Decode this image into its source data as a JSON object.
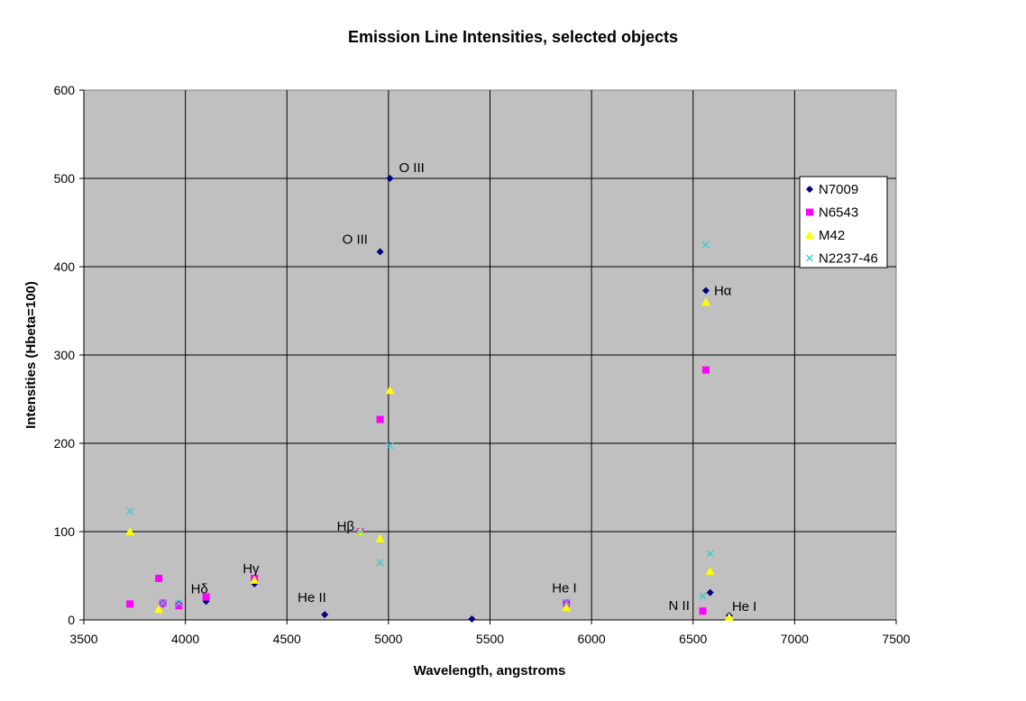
{
  "chart_data": {
    "type": "scatter",
    "title": "Emission Line Intensities, selected objects",
    "xlabel": "Wavelength, angstroms",
    "ylabel": "Intensities (Hbeta=100)",
    "xlim": [
      3500,
      7500
    ],
    "ylim": [
      0,
      600
    ],
    "xticks": [
      3500,
      4000,
      4500,
      5000,
      5500,
      6000,
      6500,
      7000,
      7500
    ],
    "yticks": [
      0,
      100,
      200,
      300,
      400,
      500,
      600
    ],
    "grid": true,
    "plot_background": "#c0c0c0",
    "legend_position": "right",
    "series": [
      {
        "name": "N7009",
        "marker": "diamond",
        "color": "#000080",
        "points": [
          [
            3889,
            18
          ],
          [
            3968,
            18
          ],
          [
            4102,
            21
          ],
          [
            4340,
            41
          ],
          [
            4686,
            6
          ],
          [
            4861,
            100
          ],
          [
            4959,
            417
          ],
          [
            5007,
            500
          ],
          [
            5411,
            1
          ],
          [
            6563,
            373
          ],
          [
            6584,
            31
          ],
          [
            6678,
            5
          ]
        ]
      },
      {
        "name": "N6543",
        "marker": "square",
        "color": "#ff00ff",
        "points": [
          [
            3727,
            18
          ],
          [
            3869,
            47
          ],
          [
            3889,
            19
          ],
          [
            3968,
            16
          ],
          [
            4102,
            26
          ],
          [
            4340,
            47
          ],
          [
            4861,
            100
          ],
          [
            4959,
            227
          ],
          [
            5876,
            19
          ],
          [
            6548,
            10
          ],
          [
            6563,
            283
          ]
        ]
      },
      {
        "name": "M42",
        "marker": "triangle",
        "color": "#ffff00",
        "points": [
          [
            3727,
            100
          ],
          [
            3869,
            12
          ],
          [
            4340,
            45
          ],
          [
            4861,
            100
          ],
          [
            4959,
            92
          ],
          [
            5007,
            260
          ],
          [
            5876,
            14
          ],
          [
            6563,
            360
          ],
          [
            6584,
            55
          ],
          [
            6678,
            3
          ]
        ]
      },
      {
        "name": "N2237-46",
        "marker": "x",
        "color": "#33cccc",
        "points": [
          [
            3727,
            123
          ],
          [
            3889,
            19
          ],
          [
            3968,
            19
          ],
          [
            4861,
            100
          ],
          [
            4959,
            65
          ],
          [
            5007,
            197
          ],
          [
            5876,
            20
          ],
          [
            6548,
            27
          ],
          [
            6563,
            425
          ],
          [
            6584,
            75
          ]
        ]
      }
    ],
    "annotations": [
      {
        "text": "O III",
        "x": 5007,
        "y": 500
      },
      {
        "text": "O III",
        "x": 4959,
        "y": 417
      },
      {
        "text": "Hα",
        "x": 6563,
        "y": 373
      },
      {
        "text": "Hβ",
        "x": 4861,
        "y": 100
      },
      {
        "text": "Hγ",
        "x": 4340,
        "y": 41
      },
      {
        "text": "Hδ",
        "x": 4102,
        "y": 21
      },
      {
        "text": "He II",
        "x": 4686,
        "y": 6
      },
      {
        "text": "He I",
        "x": 5876,
        "y": 19
      },
      {
        "text": "N II",
        "x": 6548,
        "y": 10
      },
      {
        "text": "He I",
        "x": 6678,
        "y": 5
      }
    ]
  }
}
